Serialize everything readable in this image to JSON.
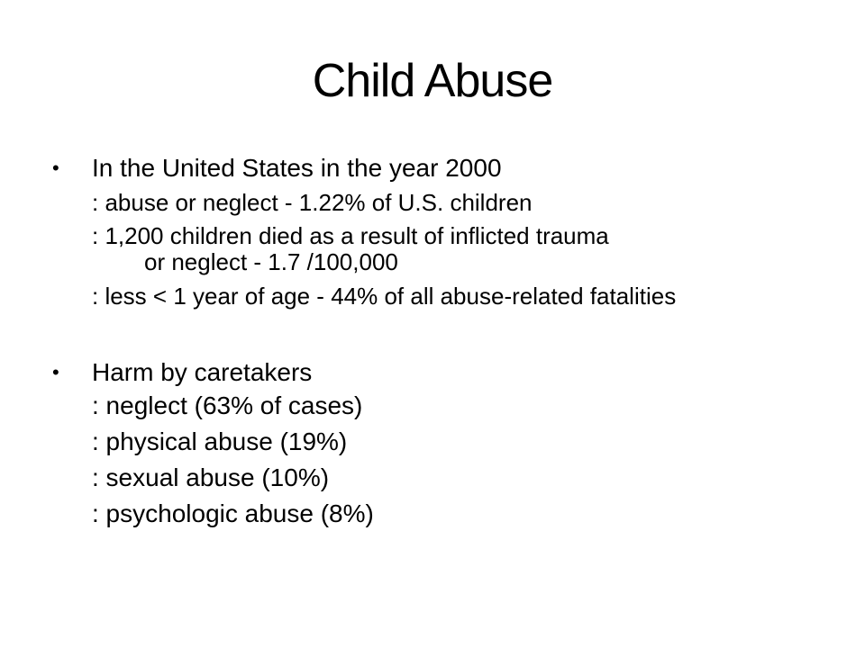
{
  "slide": {
    "title": "Child Abuse",
    "bullet_glyph": "•",
    "section1": {
      "heading": "In the United States in the year 2000",
      "items": [
        ": abuse or neglect - 1.22% of U.S. children",
        ": 1,200 children died as a result of inflicted trauma",
        "or neglect - 1.7 /100,000",
        ": less < 1 year of age - 44% of all abuse-related  fatalities"
      ]
    },
    "section2": {
      "heading": "Harm by caretakers",
      "items": [
        ": neglect  (63% of cases)",
        ": physical abuse  (19%)",
        ": sexual abuse  (10%)",
        ": psychologic abuse  (8%)"
      ]
    }
  }
}
